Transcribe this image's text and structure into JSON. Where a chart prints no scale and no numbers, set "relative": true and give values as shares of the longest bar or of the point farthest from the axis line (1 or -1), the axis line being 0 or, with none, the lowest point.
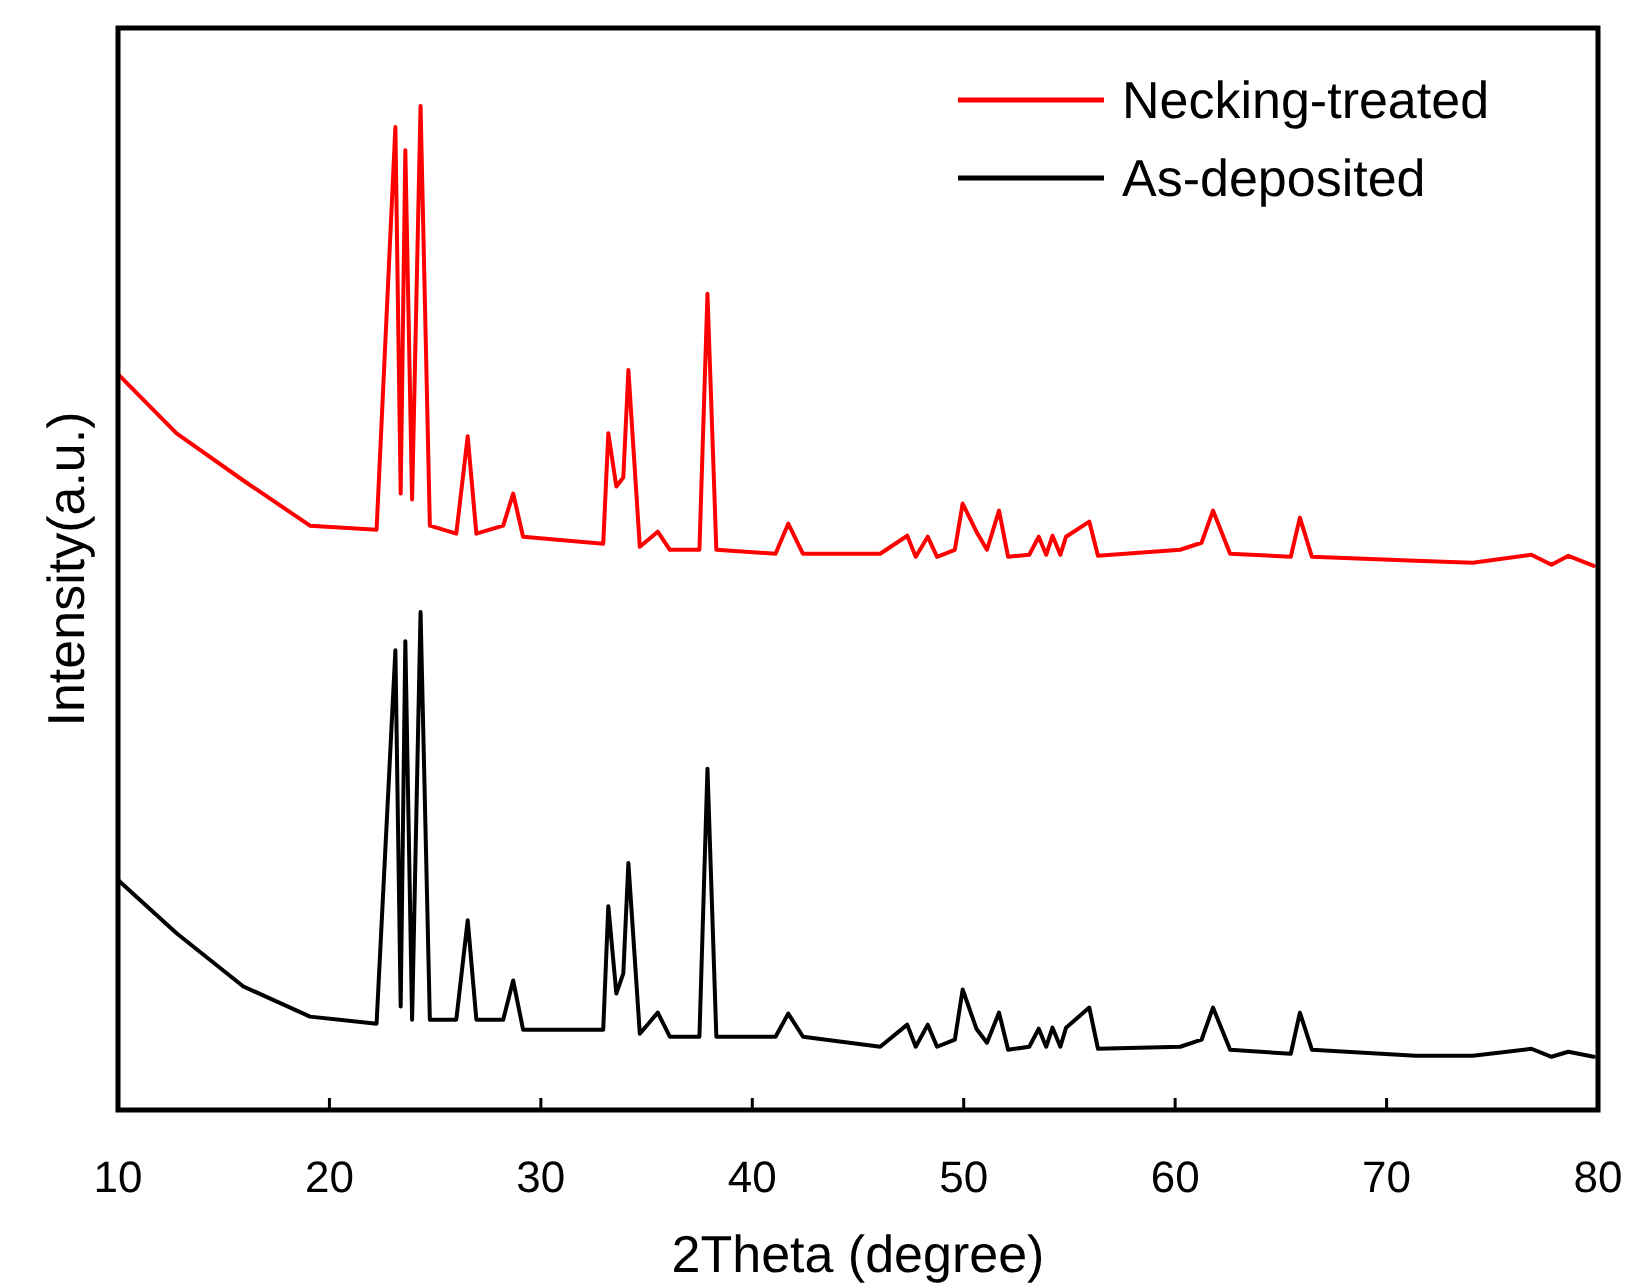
{
  "chart_data": {
    "type": "line",
    "xlabel": "2Theta (degree)",
    "ylabel": "Intensity(a.u.)",
    "relative": true,
    "xlim": [
      10,
      80
    ],
    "xticks": [
      10,
      20,
      30,
      40,
      50,
      60,
      70,
      80
    ],
    "tick_labels": "x",
    "legend": "top right",
    "grid": false,
    "marker": "none",
    "line_style": "solid",
    "x": [
      10,
      12.77,
      15.93,
      19.08,
      22.23,
      23.12,
      23.37,
      23.59,
      23.91,
      24.31,
      24.75,
      26.0,
      26.54,
      26.95,
      28.22,
      28.69,
      29.16,
      32.95,
      33.19,
      33.57,
      33.9,
      34.14,
      34.68,
      35.53,
      36.1,
      37.5,
      37.88,
      38.3,
      41.1,
      41.7,
      42.4,
      46.05,
      47.33,
      47.73,
      48.3,
      48.74,
      49.58,
      49.95,
      50.6,
      51.1,
      51.67,
      52.1,
      53.1,
      53.55,
      53.9,
      54.2,
      54.57,
      54.84,
      55.94,
      56.35,
      60.24,
      61.25,
      61.79,
      62.6,
      65.47,
      65.9,
      66.47,
      71.38,
      74.08,
      76.85,
      77.8,
      78.6,
      79.8
    ],
    "series": [
      {
        "name": "Necking-treated",
        "color": "#ff0000",
        "values": [
          0.733,
          0.674,
          0.627,
          0.582,
          0.578,
          0.979,
          0.614,
          0.956,
          0.608,
          1,
          0.582,
          0.574,
          0.671,
          0.574,
          0.582,
          0.614,
          0.571,
          0.564,
          0.674,
          0.621,
          0.63,
          0.737,
          0.561,
          0.576,
          0.558,
          0.558,
          0.813,
          0.558,
          0.554,
          0.584,
          0.554,
          0.554,
          0.572,
          0.551,
          0.571,
          0.551,
          0.558,
          0.604,
          0.576,
          0.558,
          0.597,
          0.551,
          0.553,
          0.571,
          0.553,
          0.572,
          0.553,
          0.571,
          0.586,
          0.552,
          0.558,
          0.565,
          0.597,
          0.554,
          0.551,
          0.59,
          0.551,
          0.547,
          0.545,
          0.553,
          0.543,
          0.552,
          0.542
        ]
      },
      {
        "name": "As-deposited",
        "color": "#000000",
        "values": [
          0.229,
          0.176,
          0.123,
          0.093,
          0.086,
          0.458,
          0.103,
          0.467,
          0.09,
          0.496,
          0.09,
          0.09,
          0.189,
          0.09,
          0.09,
          0.129,
          0.08,
          0.08,
          0.203,
          0.116,
          0.136,
          0.246,
          0.076,
          0.097,
          0.073,
          0.073,
          0.34,
          0.073,
          0.073,
          0.096,
          0.073,
          0.063,
          0.085,
          0.063,
          0.085,
          0.063,
          0.07,
          0.12,
          0.081,
          0.067,
          0.097,
          0.06,
          0.063,
          0.081,
          0.063,
          0.082,
          0.063,
          0.082,
          0.102,
          0.061,
          0.063,
          0.07,
          0.102,
          0.06,
          0.056,
          0.097,
          0.06,
          0.054,
          0.054,
          0.061,
          0.053,
          0.058,
          0.053
        ]
      }
    ]
  }
}
